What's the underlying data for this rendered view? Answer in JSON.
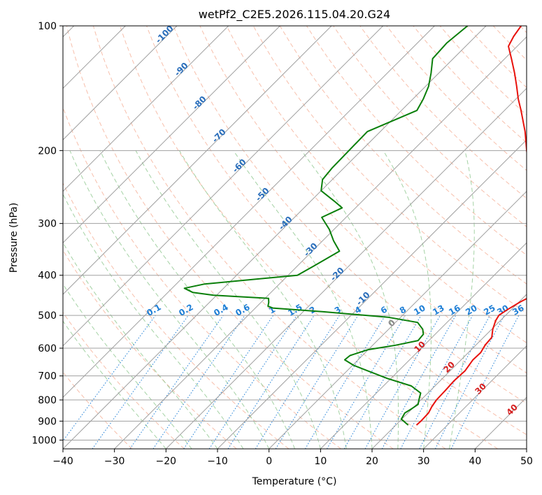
{
  "chart_data": {
    "type": "line",
    "chart_kind": "skew-T log-P",
    "title": "wetPf2_C2E5.2026.115.04.20.G24",
    "xlabel": "Temperature (°C)",
    "ylabel": "Pressure (hPa)",
    "xlim": [
      -40,
      50
    ],
    "ylim": [
      1050,
      100
    ],
    "y_scale": "log",
    "grid": true,
    "x_ticks": [
      -40,
      -30,
      -20,
      -10,
      0,
      10,
      20,
      30,
      40,
      50
    ],
    "y_ticks": [
      100,
      200,
      300,
      400,
      500,
      600,
      700,
      800,
      900,
      1000
    ],
    "colors": {
      "temperature": "#e8120c",
      "dewpoint": "#0a7f0a",
      "isotherm": "#a0a0a0",
      "dry_adiabat": "#f4a98f",
      "moist_adiabat": "#86c386",
      "mixing_ratio": "#1f7fd6",
      "isotherm_label": "#2a6ebb",
      "wetbulb_label": "#d62020",
      "zero_label": "#888888"
    },
    "series": [
      {
        "key": "temperature",
        "values": [
          {
            "p": 920,
            "t": 24.0
          },
          {
            "p": 900,
            "t": 24.1
          },
          {
            "p": 860,
            "t": 24.0
          },
          {
            "p": 830,
            "t": 23.4
          },
          {
            "p": 800,
            "t": 23.0
          },
          {
            "p": 760,
            "t": 22.9
          },
          {
            "p": 720,
            "t": 22.7
          },
          {
            "p": 680,
            "t": 22.9
          },
          {
            "p": 640,
            "t": 22.3
          },
          {
            "p": 615,
            "t": 22.4
          },
          {
            "p": 590,
            "t": 21.8
          },
          {
            "p": 565,
            "t": 21.6
          },
          {
            "p": 540,
            "t": 20.2
          },
          {
            "p": 515,
            "t": 19.1
          },
          {
            "p": 500,
            "t": 18.7
          },
          {
            "p": 485,
            "t": 19.2
          },
          {
            "p": 465,
            "t": 20.2
          },
          {
            "p": 450,
            "t": 21.2
          },
          {
            "p": 435,
            "t": 21.5
          },
          {
            "p": 420,
            "t": 21.1
          },
          {
            "p": 405,
            "t": 19.7
          },
          {
            "p": 385,
            "t": 17.2
          },
          {
            "p": 360,
            "t": 13.9
          },
          {
            "p": 330,
            "t": 10.4
          },
          {
            "p": 300,
            "t": 6.6
          },
          {
            "p": 280,
            "t": 4.7
          },
          {
            "p": 260,
            "t": 2.4
          },
          {
            "p": 240,
            "t": -0.6
          },
          {
            "p": 220,
            "t": -4.1
          },
          {
            "p": 200,
            "t": -7.9
          },
          {
            "p": 180,
            "t": -11.9
          },
          {
            "p": 160,
            "t": -16.8
          },
          {
            "p": 150,
            "t": -19.6
          },
          {
            "p": 140,
            "t": -22.3
          },
          {
            "p": 130,
            "t": -25.3
          },
          {
            "p": 120,
            "t": -28.7
          },
          {
            "p": 112,
            "t": -31.7
          },
          {
            "p": 106,
            "t": -32.6
          },
          {
            "p": 100,
            "t": -33.2
          }
        ]
      },
      {
        "key": "dewpoint",
        "values": [
          {
            "p": 920,
            "t": 22.4
          },
          {
            "p": 890,
            "t": 19.9
          },
          {
            "p": 860,
            "t": 19.4
          },
          {
            "p": 840,
            "t": 19.9
          },
          {
            "p": 820,
            "t": 20.3
          },
          {
            "p": 800,
            "t": 19.6
          },
          {
            "p": 770,
            "t": 18.6
          },
          {
            "p": 740,
            "t": 15.4
          },
          {
            "p": 710,
            "t": 9.3
          },
          {
            "p": 680,
            "t": 3.9
          },
          {
            "p": 660,
            "t": 0.2
          },
          {
            "p": 640,
            "t": -2.6
          },
          {
            "p": 625,
            "t": -2.4
          },
          {
            "p": 605,
            "t": 0.0
          },
          {
            "p": 590,
            "t": 4.5
          },
          {
            "p": 575,
            "t": 7.9
          },
          {
            "p": 555,
            "t": 7.7
          },
          {
            "p": 540,
            "t": 6.6
          },
          {
            "p": 520,
            "t": 4.3
          },
          {
            "p": 505,
            "t": -2.5
          },
          {
            "p": 490,
            "t": -16.1
          },
          {
            "p": 480,
            "t": -26.6
          },
          {
            "p": 475,
            "t": -27.9
          },
          {
            "p": 465,
            "t": -28.5
          },
          {
            "p": 455,
            "t": -29.3
          },
          {
            "p": 447,
            "t": -40.6
          },
          {
            "p": 440,
            "t": -45.2
          },
          {
            "p": 430,
            "t": -47.6
          },
          {
            "p": 420,
            "t": -44.5
          },
          {
            "p": 400,
            "t": -28.2
          },
          {
            "p": 380,
            "t": -26.8
          },
          {
            "p": 350,
            "t": -24.7
          },
          {
            "p": 330,
            "t": -27.9
          },
          {
            "p": 310,
            "t": -30.9
          },
          {
            "p": 290,
            "t": -34.7
          },
          {
            "p": 275,
            "t": -32.6
          },
          {
            "p": 265,
            "t": -35.4
          },
          {
            "p": 250,
            "t": -40.0
          },
          {
            "p": 235,
            "t": -41.9
          },
          {
            "p": 220,
            "t": -42.3
          },
          {
            "p": 200,
            "t": -42.4
          },
          {
            "p": 180,
            "t": -42.5
          },
          {
            "p": 160,
            "t": -37.0
          },
          {
            "p": 150,
            "t": -38.0
          },
          {
            "p": 140,
            "t": -39.4
          },
          {
            "p": 130,
            "t": -41.5
          },
          {
            "p": 120,
            "t": -44.0
          },
          {
            "p": 110,
            "t": -44.3
          },
          {
            "p": 100,
            "t": -43.6
          }
        ]
      }
    ],
    "isotherm_labels": [
      "-100",
      "-90",
      "-80",
      "-70",
      "-60",
      "-50",
      "-40",
      "-30",
      "-20",
      "-10"
    ],
    "mixing_ratio_labels": [
      "0.1",
      "0.2",
      "0.4",
      "0.6",
      "1",
      "1.5",
      "2",
      "3",
      "4",
      "6",
      "8",
      "10",
      "13",
      "16",
      "20",
      "25",
      "30",
      "36"
    ],
    "wetbulb_labels": [
      "0",
      "10",
      "20",
      "30",
      "40"
    ]
  }
}
